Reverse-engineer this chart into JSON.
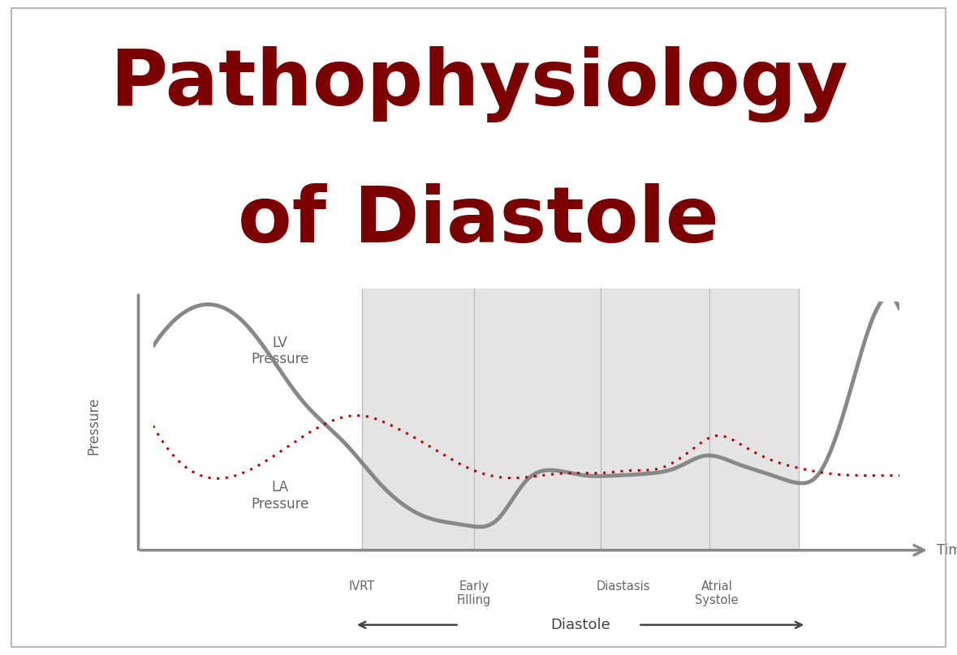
{
  "title_line1": "Pathophysiology",
  "title_line2": "of Diastole",
  "title_color": "#7B0000",
  "title_fontsize": 70,
  "bg_color": "#FFFFFF",
  "border_color": "#BBBBBB",
  "axis_color": "#888888",
  "lv_label": "LV\nPressure",
  "la_label": "LA\nPressure",
  "pressure_label": "Pressure",
  "time_label": "Time",
  "phase_labels": [
    "IVRT",
    "Early\nFilling",
    "Diastasis",
    "Atrial\nSystole"
  ],
  "shade_color": "#E4E4E4",
  "lv_color": "#888888",
  "la_color": "#BB0000",
  "lv_linewidth": 3.5,
  "la_linewidth": 2.2,
  "divider_color": "#BBBBBB",
  "axis_linewidth": 2.5
}
